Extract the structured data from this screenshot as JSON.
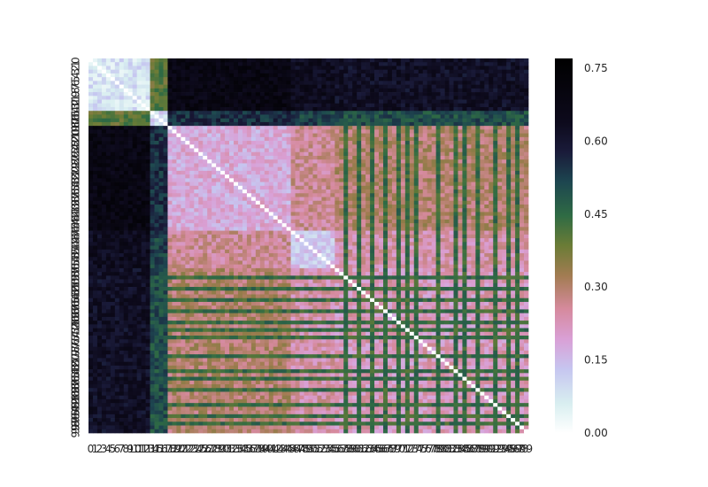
{
  "chart_data": {
    "type": "heatmap",
    "title": "",
    "xlabel": "",
    "ylabel": "",
    "n": 100,
    "diagonal_value": 0.0,
    "blocks": [
      {
        "start": 0,
        "end": 14,
        "within": 0.08
      },
      {
        "start": 14,
        "end": 18,
        "within": 0.1
      },
      {
        "start": 18,
        "end": 46,
        "within": 0.18
      },
      {
        "start": 46,
        "end": 56,
        "within": 0.13
      },
      {
        "start": 56,
        "end": 100,
        "within": 0.22
      }
    ],
    "between": [
      [
        0.0,
        0.4,
        0.68,
        0.64,
        0.62
      ],
      [
        0.4,
        0.0,
        0.55,
        0.52,
        0.5
      ],
      [
        0.68,
        0.55,
        0.0,
        0.26,
        0.3
      ],
      [
        0.64,
        0.52,
        0.26,
        0.0,
        0.24
      ],
      [
        0.62,
        0.5,
        0.3,
        0.24,
        0.0
      ]
    ],
    "striped_rows": [
      58,
      61,
      64,
      67,
      70,
      72,
      74,
      79,
      83,
      85,
      88,
      92,
      95,
      97
    ],
    "striped_value": 0.44,
    "x_tick_labels": [
      "0",
      "1",
      "2",
      "3",
      "4",
      "5",
      "6",
      "7",
      "8",
      "9",
      "10",
      "11",
      "12",
      "13",
      "14",
      "15",
      "16",
      "17",
      "18",
      "19",
      "20",
      "21",
      "22",
      "23",
      "24",
      "25",
      "26",
      "27",
      "28",
      "29",
      "30",
      "31",
      "32",
      "33",
      "34",
      "35",
      "36",
      "37",
      "38",
      "39",
      "40",
      "41",
      "42",
      "43",
      "44",
      "45",
      "46",
      "47",
      "48",
      "49",
      "50",
      "51",
      "52",
      "53",
      "54",
      "55",
      "56",
      "57",
      "58",
      "59",
      "60",
      "61",
      "62",
      "63",
      "64",
      "65",
      "66",
      "67",
      "68",
      "69",
      "70",
      "71",
      "72",
      "73",
      "74",
      "75",
      "76",
      "77",
      "78",
      "79",
      "80",
      "81",
      "82",
      "83",
      "84",
      "85",
      "86",
      "87",
      "88",
      "89",
      "90",
      "91",
      "92",
      "93",
      "94",
      "95",
      "96",
      "97",
      "98",
      "99"
    ],
    "y_tick_labels": [
      "0",
      "1",
      "2",
      "3",
      "4",
      "5",
      "6",
      "7",
      "8",
      "9",
      "10",
      "11",
      "12",
      "13",
      "14",
      "15",
      "16",
      "17",
      "18",
      "19",
      "20",
      "21",
      "22",
      "23",
      "24",
      "25",
      "26",
      "27",
      "28",
      "29",
      "30",
      "31",
      "32",
      "33",
      "34",
      "35",
      "36",
      "37",
      "38",
      "39",
      "40",
      "41",
      "42",
      "43",
      "44",
      "45",
      "46",
      "47",
      "48",
      "49",
      "50",
      "51",
      "52",
      "53",
      "54",
      "55",
      "56",
      "57",
      "58",
      "59",
      "60",
      "61",
      "62",
      "63",
      "64",
      "65",
      "66",
      "67",
      "68",
      "69",
      "70",
      "71",
      "72",
      "73",
      "74",
      "75",
      "76",
      "77",
      "78",
      "79",
      "80",
      "81",
      "82",
      "83",
      "84",
      "85",
      "86",
      "87",
      "88",
      "89",
      "90",
      "91",
      "92",
      "93",
      "94",
      "95",
      "96",
      "97",
      "98",
      "99"
    ],
    "colorbar": {
      "vmin": 0.0,
      "vmax": 0.77,
      "ticks": [
        0.0,
        0.15,
        0.3,
        0.45,
        0.6,
        0.75
      ],
      "tick_labels": [
        "0.00",
        "0.15",
        "0.30",
        "0.45",
        "0.60",
        "0.75"
      ],
      "colormap": "cubehelix_r",
      "colormap_stops": [
        {
          "v": 0.0,
          "color": "#ffffff"
        },
        {
          "v": 0.08,
          "color": "#d8eef0"
        },
        {
          "v": 0.17,
          "color": "#c6c6f0"
        },
        {
          "v": 0.25,
          "color": "#d9a0d6"
        },
        {
          "v": 0.33,
          "color": "#d68a9e"
        },
        {
          "v": 0.42,
          "color": "#a27c52"
        },
        {
          "v": 0.5,
          "color": "#6b7c36"
        },
        {
          "v": 0.58,
          "color": "#2f6b44"
        },
        {
          "v": 0.67,
          "color": "#1d4650"
        },
        {
          "v": 0.75,
          "color": "#1a1b3a"
        },
        {
          "v": 0.83,
          "color": "#0d0a1c"
        },
        {
          "v": 1.0,
          "color": "#000000"
        }
      ]
    },
    "grid": false,
    "legend": "colorbar-right"
  }
}
